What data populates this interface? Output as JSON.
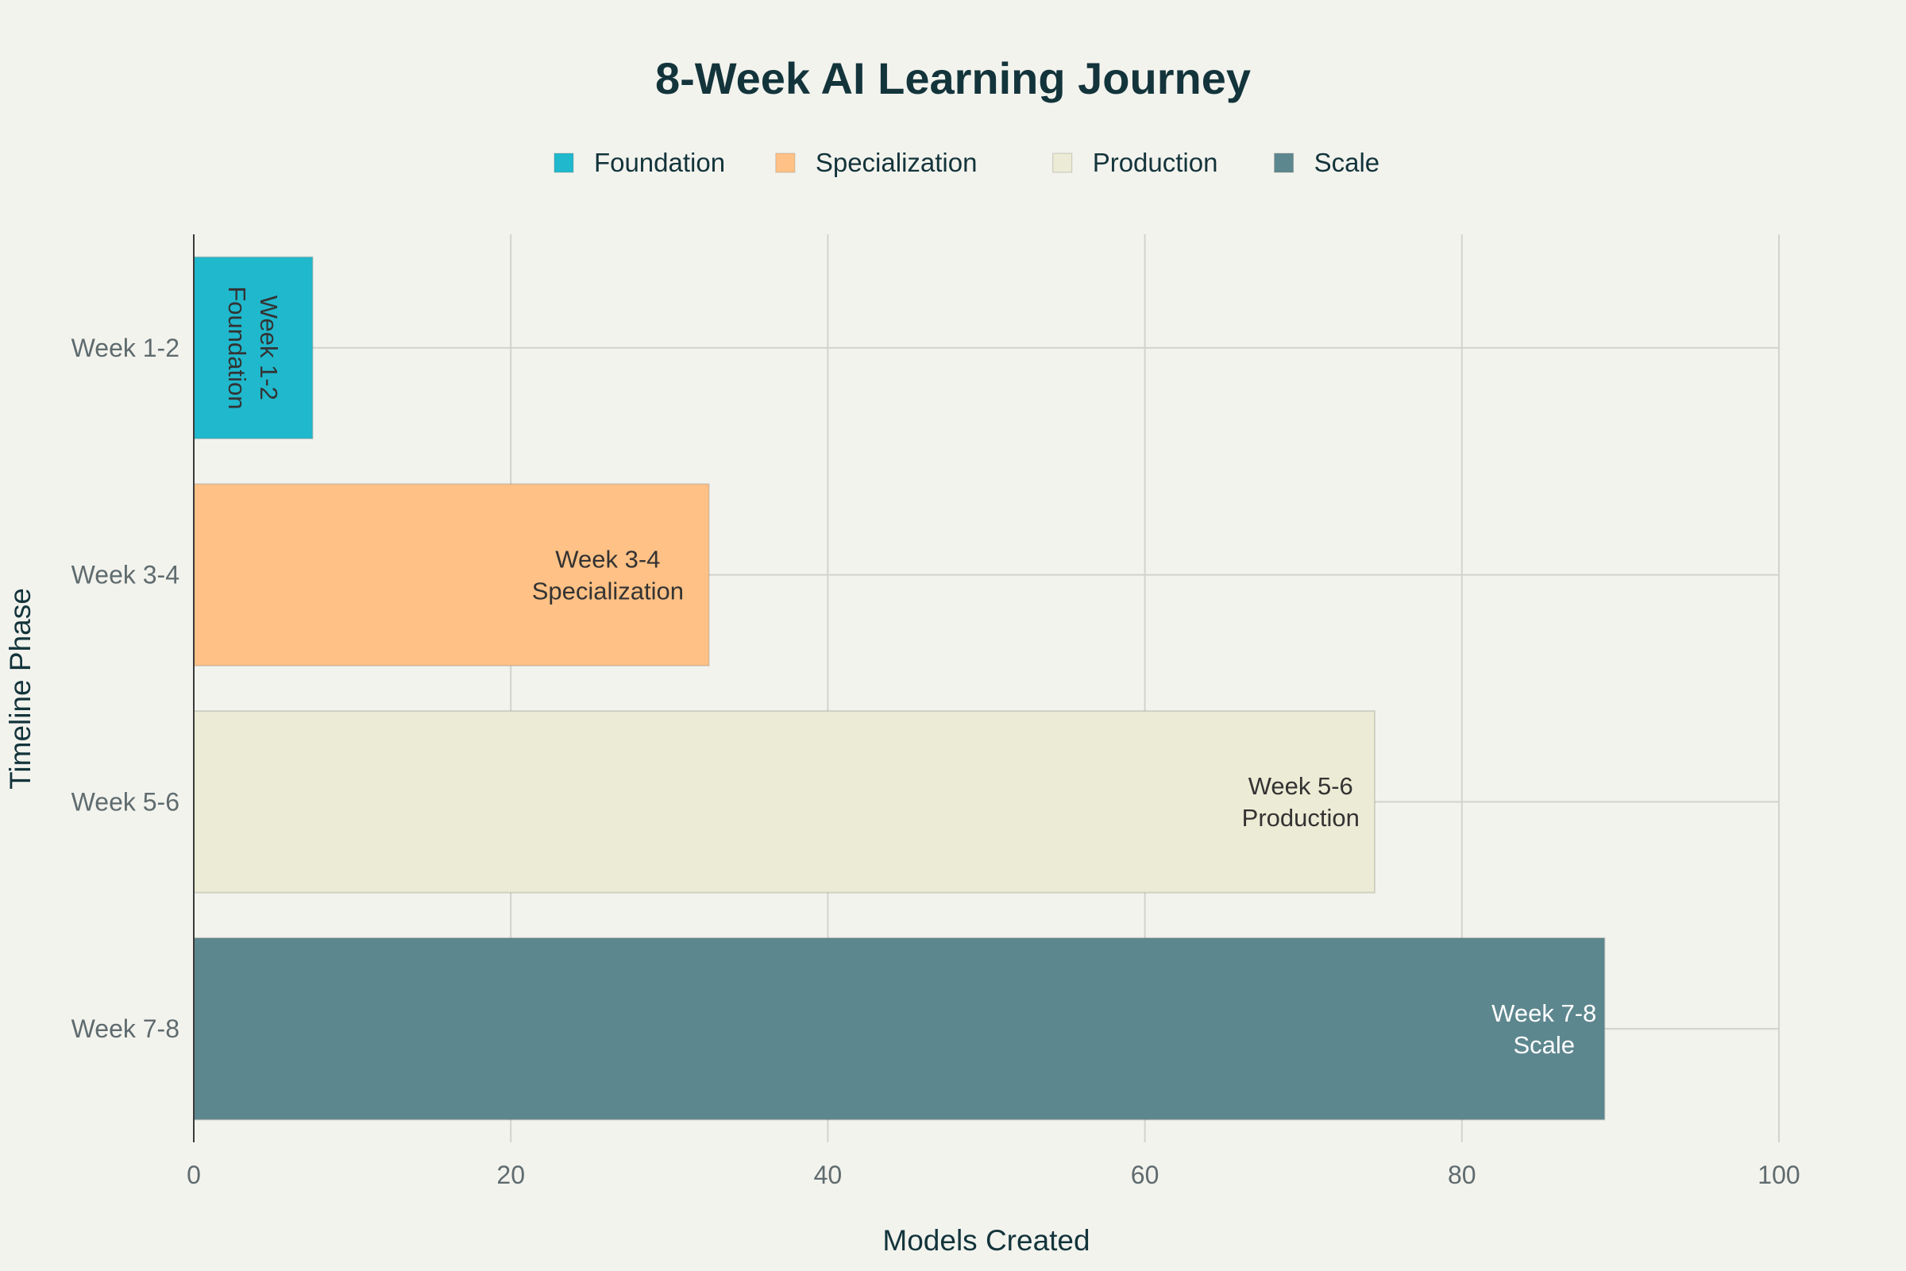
{
  "chart_data": {
    "type": "bar",
    "orientation": "horizontal",
    "title": "8-Week AI Learning Journey",
    "xlabel": "Models Created",
    "ylabel": "Timeline Phase",
    "xlim": [
      0,
      100
    ],
    "xticks": [
      0,
      20,
      40,
      60,
      80,
      100
    ],
    "grid": true,
    "legend_position": "top-center",
    "categories": [
      "Week 1-2",
      "Week 3-4",
      "Week 5-6",
      "Week 7-8"
    ],
    "series": [
      {
        "name": "Foundation",
        "category": "Week 1-2",
        "value": 7.5,
        "color": "#1fb8cd",
        "bar_text": [
          "Week 1-2",
          "Foundation"
        ],
        "text_color": "#333333"
      },
      {
        "name": "Specialization",
        "category": "Week 3-4",
        "value": 32.5,
        "color": "#ffc185",
        "bar_text": [
          "Week 3-4",
          "Specialization"
        ],
        "text_color": "#333333"
      },
      {
        "name": "Production",
        "category": "Week 5-6",
        "value": 74.5,
        "color": "#eceBd5",
        "bar_text": [
          "Week 5-6",
          "Production"
        ],
        "text_color": "#333333"
      },
      {
        "name": "Scale",
        "category": "Week 7-8",
        "value": 89,
        "color": "#5d878f",
        "bar_text": [
          "Week 7-8",
          "Scale"
        ],
        "text_color": "#ffffff"
      }
    ]
  }
}
